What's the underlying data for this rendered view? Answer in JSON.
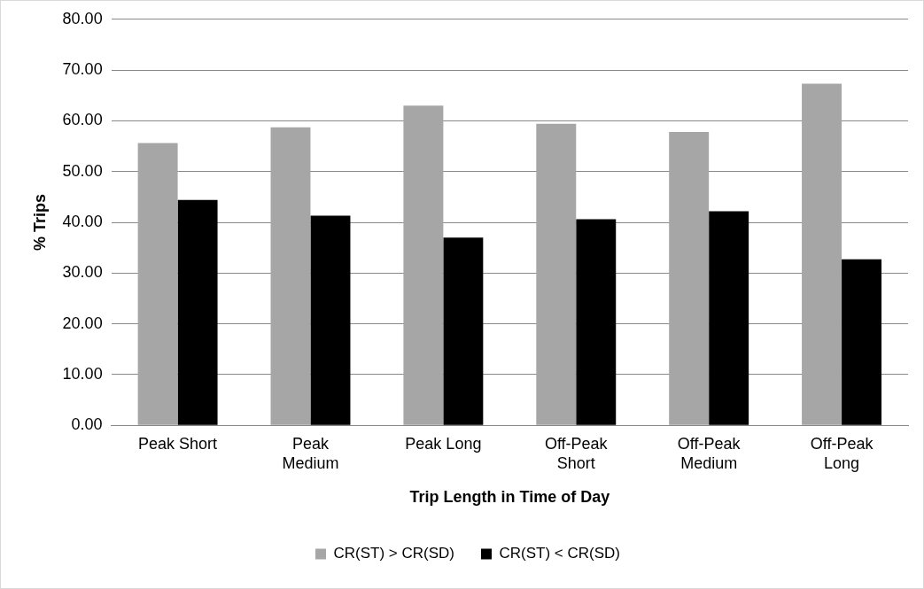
{
  "chart_data": {
    "type": "bar",
    "xlabel": "Trip Length in Time of Day",
    "ylabel": "% Trips",
    "categories": [
      "Peak Short",
      "Peak Medium",
      "Peak Long",
      "Off-Peak Short",
      "Off-Peak Medium",
      "Off-Peak Long"
    ],
    "series": [
      {
        "name": "CR(ST) > CR(SD)",
        "color": "#a6a6a6",
        "values": [
          55.6,
          58.7,
          63.0,
          59.4,
          57.8,
          67.3
        ]
      },
      {
        "name": "CR(ST) < CR(SD)",
        "color": "#000000",
        "values": [
          44.4,
          41.3,
          37.0,
          40.6,
          42.2,
          32.7
        ]
      }
    ],
    "ylim": [
      0,
      80
    ],
    "yticks": [
      {
        "value": 0,
        "label": "0.00"
      },
      {
        "value": 10,
        "label": "10.00"
      },
      {
        "value": 20,
        "label": "20.00"
      },
      {
        "value": 30,
        "label": "30.00"
      },
      {
        "value": 40,
        "label": "40.00"
      },
      {
        "value": 50,
        "label": "50.00"
      },
      {
        "value": 60,
        "label": "60.00"
      },
      {
        "value": 70,
        "label": "70.00"
      },
      {
        "value": 80,
        "label": "80.00"
      }
    ],
    "grid": "y",
    "legend": "bottom"
  }
}
